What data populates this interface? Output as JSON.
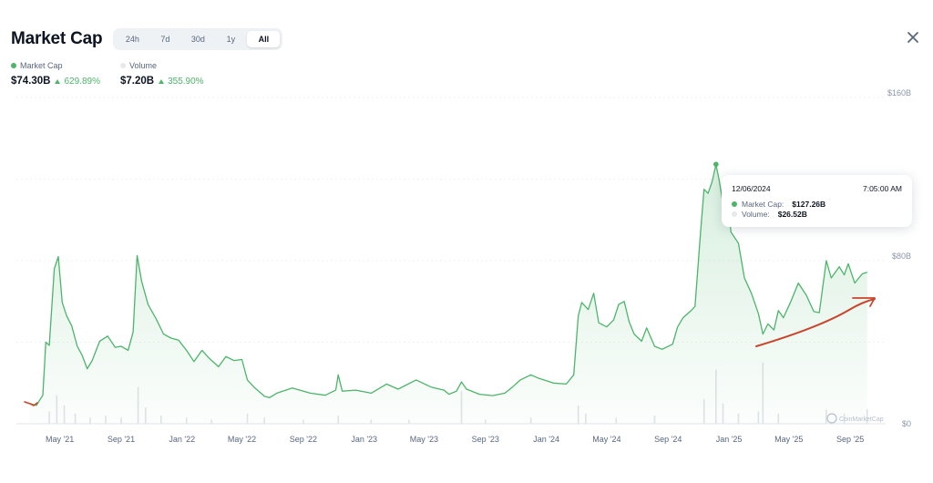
{
  "header": {
    "title": "Market Cap",
    "tabs": [
      {
        "label": "24h",
        "active": false
      },
      {
        "label": "7d",
        "active": false
      },
      {
        "label": "30d",
        "active": false
      },
      {
        "label": "1y",
        "active": false
      },
      {
        "label": "All",
        "active": true
      }
    ]
  },
  "legend": {
    "market_cap": {
      "label": "Market Cap",
      "value": "$74.30B",
      "change": "629.89%",
      "color": "#4cb56a"
    },
    "volume": {
      "label": "Volume",
      "value": "$7.20B",
      "change": "355.90%",
      "color": "#e6e8ec"
    }
  },
  "tooltip": {
    "date": "12/06/2024",
    "time": "7:05:00 AM",
    "market_cap_label": "Market Cap:",
    "market_cap_value": "$127.26B",
    "volume_label": "Volume:",
    "volume_value": "$26.52B"
  },
  "watermark": "CoinMarketCap",
  "chart_data": {
    "type": "area",
    "xlabel": "",
    "ylabel": "",
    "x_ticks": [
      "May '21",
      "Sep '21",
      "Jan '22",
      "May '22",
      "Sep '22",
      "Jan '23",
      "May '23",
      "Sep '23",
      "Jan '24",
      "May '24",
      "Sep '24",
      "Jan '25",
      "May '25",
      "Sep '25"
    ],
    "y_ticks": [
      "$0",
      "$80B",
      "$160B"
    ],
    "ylim": [
      0,
      160
    ],
    "xlim": [
      "2021-02-25",
      "2025-10-20"
    ],
    "grid": true,
    "series": [
      {
        "name": "Market Cap",
        "color": "#4cb56a",
        "points": [
          [
            "2021-03-01",
            10.0
          ],
          [
            "2021-03-15",
            9.0
          ],
          [
            "2021-03-28",
            14.0
          ],
          [
            "2021-04-03",
            40.0
          ],
          [
            "2021-04-10",
            38.5
          ],
          [
            "2021-04-20",
            76.0
          ],
          [
            "2021-04-28",
            82.0
          ],
          [
            "2021-05-06",
            59.5
          ],
          [
            "2021-05-15",
            52.8
          ],
          [
            "2021-05-25",
            48.0
          ],
          [
            "2021-06-05",
            38.0
          ],
          [
            "2021-06-15",
            33.5
          ],
          [
            "2021-06-25",
            27.0
          ],
          [
            "2021-07-05",
            31.0
          ],
          [
            "2021-07-20",
            40.5
          ],
          [
            "2021-08-05",
            43.0
          ],
          [
            "2021-08-20",
            37.5
          ],
          [
            "2021-09-01",
            38.0
          ],
          [
            "2021-09-15",
            36.0
          ],
          [
            "2021-09-25",
            45.0
          ],
          [
            "2021-10-03",
            82.5
          ],
          [
            "2021-10-12",
            70.0
          ],
          [
            "2021-10-25",
            58.5
          ],
          [
            "2021-11-10",
            51.5
          ],
          [
            "2021-11-25",
            44.0
          ],
          [
            "2021-12-10",
            42.0
          ],
          [
            "2021-12-25",
            41.0
          ],
          [
            "2022-01-10",
            36.0
          ],
          [
            "2022-01-25",
            30.5
          ],
          [
            "2022-02-10",
            36.0
          ],
          [
            "2022-02-25",
            32.0
          ],
          [
            "2022-03-15",
            28.0
          ],
          [
            "2022-03-30",
            33.0
          ],
          [
            "2022-04-15",
            31.0
          ],
          [
            "2022-05-01",
            31.5
          ],
          [
            "2022-05-12",
            21.5
          ],
          [
            "2022-05-25",
            18.0
          ],
          [
            "2022-06-15",
            13.5
          ],
          [
            "2022-06-25",
            12.8
          ],
          [
            "2022-07-10",
            15.0
          ],
          [
            "2022-08-10",
            17.5
          ],
          [
            "2022-09-15",
            15.0
          ],
          [
            "2022-10-15",
            14.0
          ],
          [
            "2022-11-05",
            16.5
          ],
          [
            "2022-11-10",
            24.0
          ],
          [
            "2022-11-18",
            16.0
          ],
          [
            "2022-12-15",
            16.5
          ],
          [
            "2023-01-15",
            15.0
          ],
          [
            "2023-02-15",
            19.5
          ],
          [
            "2023-03-10",
            17.0
          ],
          [
            "2023-04-15",
            21.5
          ],
          [
            "2023-05-15",
            18.0
          ],
          [
            "2023-06-10",
            16.5
          ],
          [
            "2023-06-20",
            14.5
          ],
          [
            "2023-07-05",
            16.0
          ],
          [
            "2023-07-15",
            20.5
          ],
          [
            "2023-07-25",
            17.0
          ],
          [
            "2023-08-20",
            14.5
          ],
          [
            "2023-09-15",
            13.8
          ],
          [
            "2023-10-10",
            15.0
          ],
          [
            "2023-10-25",
            18.0
          ],
          [
            "2023-11-10",
            21.5
          ],
          [
            "2023-12-01",
            24.0
          ],
          [
            "2023-12-15",
            22.5
          ],
          [
            "2024-01-15",
            20.0
          ],
          [
            "2024-02-10",
            19.5
          ],
          [
            "2024-02-25",
            24.0
          ],
          [
            "2024-03-05",
            53.0
          ],
          [
            "2024-03-12",
            59.5
          ],
          [
            "2024-03-25",
            56.0
          ],
          [
            "2024-04-05",
            64.0
          ],
          [
            "2024-04-15",
            49.5
          ],
          [
            "2024-05-01",
            47.5
          ],
          [
            "2024-05-15",
            51.0
          ],
          [
            "2024-05-25",
            58.5
          ],
          [
            "2024-06-05",
            60.0
          ],
          [
            "2024-06-15",
            50.0
          ],
          [
            "2024-06-25",
            44.0
          ],
          [
            "2024-07-10",
            40.5
          ],
          [
            "2024-07-20",
            47.0
          ],
          [
            "2024-08-05",
            38.0
          ],
          [
            "2024-08-20",
            36.5
          ],
          [
            "2024-09-10",
            39.0
          ],
          [
            "2024-09-20",
            47.5
          ],
          [
            "2024-10-01",
            52.0
          ],
          [
            "2024-10-15",
            55.0
          ],
          [
            "2024-10-25",
            57.5
          ],
          [
            "2024-11-05",
            94.0
          ],
          [
            "2024-11-12",
            115.0
          ],
          [
            "2024-11-20",
            113.0
          ],
          [
            "2024-11-28",
            118.5
          ],
          [
            "2024-12-06",
            127.0
          ],
          [
            "2024-12-12",
            120.0
          ],
          [
            "2024-12-20",
            108.0
          ],
          [
            "2024-12-28",
            112.5
          ],
          [
            "2025-01-05",
            94.0
          ],
          [
            "2025-01-20",
            88.5
          ],
          [
            "2025-02-01",
            71.5
          ],
          [
            "2025-02-15",
            64.0
          ],
          [
            "2025-03-01",
            54.0
          ],
          [
            "2025-03-10",
            44.0
          ],
          [
            "2025-03-20",
            49.0
          ],
          [
            "2025-04-01",
            46.0
          ],
          [
            "2025-04-10",
            55.5
          ],
          [
            "2025-04-20",
            52.0
          ],
          [
            "2025-05-05",
            60.0
          ],
          [
            "2025-05-20",
            69.0
          ],
          [
            "2025-06-05",
            63.0
          ],
          [
            "2025-06-20",
            55.0
          ],
          [
            "2025-07-01",
            54.5
          ],
          [
            "2025-07-15",
            80.0
          ],
          [
            "2025-07-25",
            71.5
          ],
          [
            "2025-08-10",
            77.0
          ],
          [
            "2025-08-20",
            73.0
          ],
          [
            "2025-08-28",
            78.5
          ],
          [
            "2025-09-10",
            69.0
          ],
          [
            "2025-09-25",
            73.5
          ],
          [
            "2025-10-05",
            74.3
          ]
        ]
      },
      {
        "name": "Volume",
        "color": "#e0e3e8",
        "points": [
          [
            "2021-04-10",
            6
          ],
          [
            "2021-04-25",
            14
          ],
          [
            "2021-05-10",
            9
          ],
          [
            "2021-06-01",
            5
          ],
          [
            "2021-07-01",
            3
          ],
          [
            "2021-08-01",
            4
          ],
          [
            "2021-09-01",
            3
          ],
          [
            "2021-10-05",
            18
          ],
          [
            "2021-10-20",
            8
          ],
          [
            "2021-11-20",
            4
          ],
          [
            "2022-01-10",
            3
          ],
          [
            "2022-03-01",
            2
          ],
          [
            "2022-05-12",
            5
          ],
          [
            "2022-06-15",
            3
          ],
          [
            "2022-09-01",
            2
          ],
          [
            "2022-11-10",
            4
          ],
          [
            "2023-01-15",
            2
          ],
          [
            "2023-04-01",
            2
          ],
          [
            "2023-07-15",
            16
          ],
          [
            "2023-09-01",
            2
          ],
          [
            "2023-12-01",
            3
          ],
          [
            "2024-03-05",
            9
          ],
          [
            "2024-03-20",
            5
          ],
          [
            "2024-05-20",
            3
          ],
          [
            "2024-08-05",
            4
          ],
          [
            "2024-11-12",
            12
          ],
          [
            "2024-12-06",
            26.5
          ],
          [
            "2024-12-20",
            10
          ],
          [
            "2025-01-20",
            5
          ],
          [
            "2025-03-01",
            6
          ],
          [
            "2025-03-10",
            30
          ],
          [
            "2025-04-10",
            5
          ],
          [
            "2025-07-15",
            7
          ],
          [
            "2025-08-20",
            5
          ],
          [
            "2025-10-05",
            7.2
          ]
        ]
      }
    ],
    "highlight": {
      "date": "2024-12-06",
      "value": 127.26
    }
  }
}
